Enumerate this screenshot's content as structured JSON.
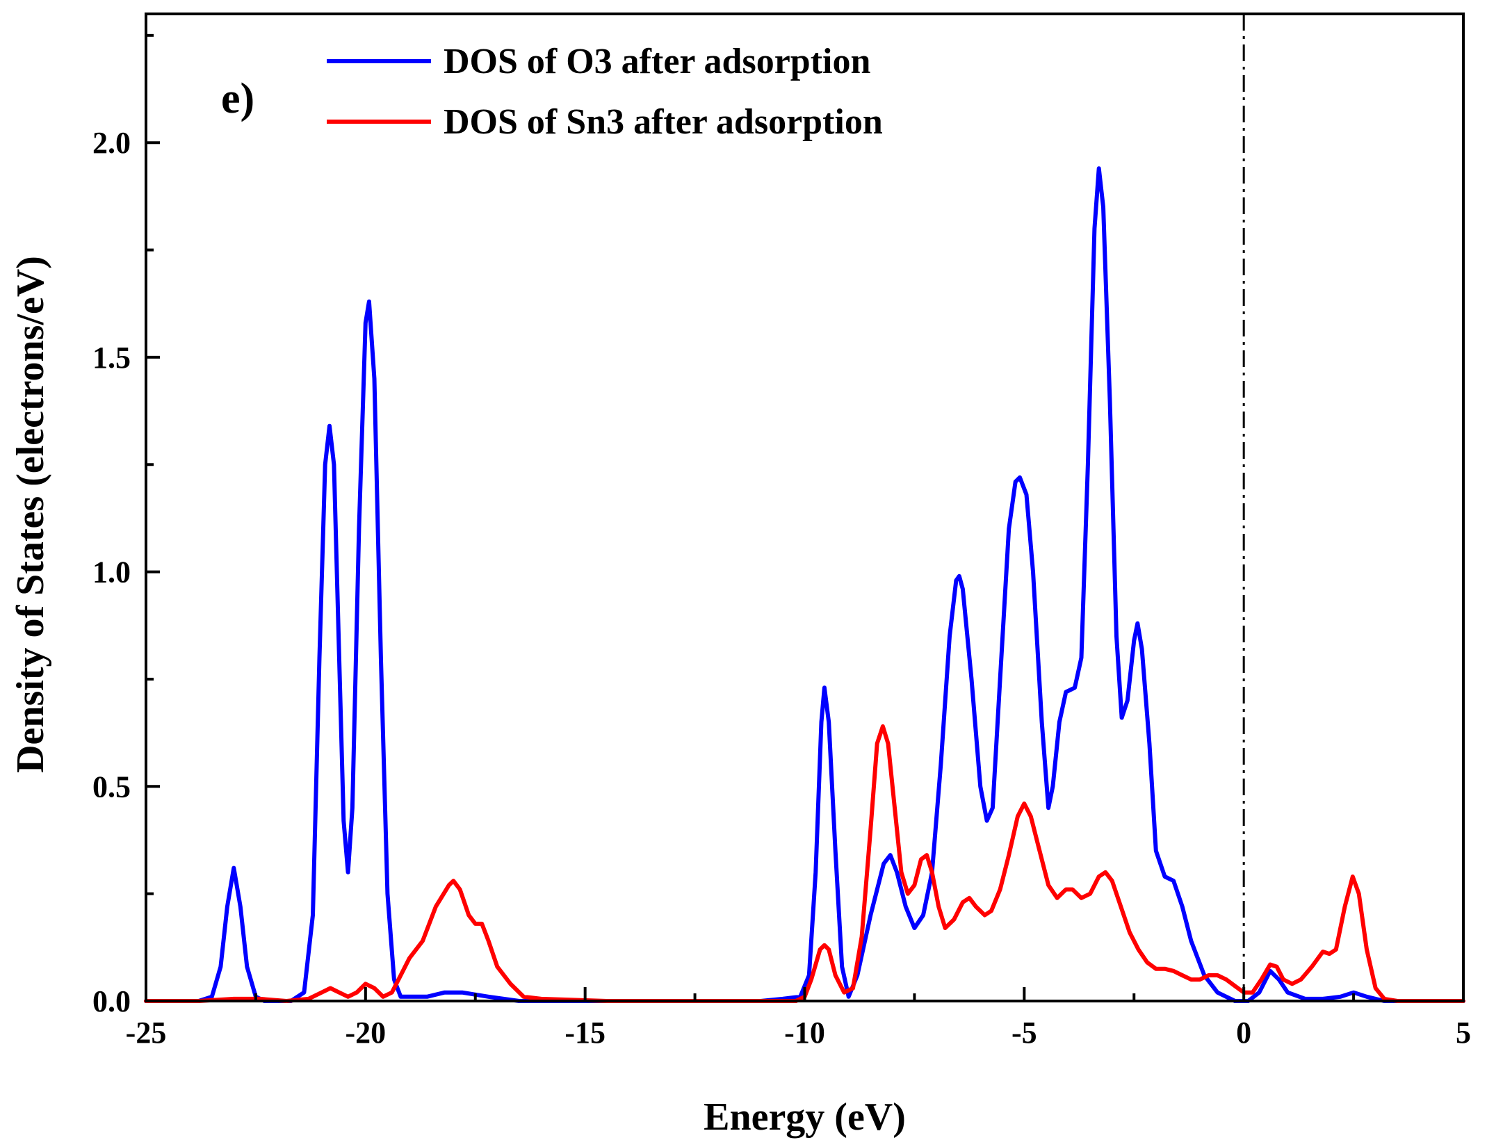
{
  "chart_data": {
    "type": "line",
    "panel_label": "e)",
    "xlabel": "Energy (eV)",
    "ylabel": "Density of States (electrons/eV)",
    "xlim": [
      -25,
      5
    ],
    "ylim": [
      0,
      2.3
    ],
    "xticks": [
      -25,
      -20,
      -15,
      -10,
      -5,
      0,
      5
    ],
    "xtick_labels": [
      "-25",
      "-20",
      "-15",
      "-10",
      "-5",
      "0",
      "5"
    ],
    "yticks": [
      0.0,
      0.5,
      1.0,
      1.5,
      2.0
    ],
    "ytick_labels": [
      "0.0",
      "0.5",
      "1.0",
      "1.5",
      "2.0"
    ],
    "fermi_level": 0,
    "legend_position": "top-left",
    "series": [
      {
        "name": "DOS of O3 after adsorption",
        "color": "#0000ff",
        "points": [
          [
            -25,
            0
          ],
          [
            -23.8,
            0
          ],
          [
            -23.5,
            0.01
          ],
          [
            -23.3,
            0.08
          ],
          [
            -23.15,
            0.22
          ],
          [
            -23.0,
            0.31
          ],
          [
            -22.85,
            0.22
          ],
          [
            -22.7,
            0.08
          ],
          [
            -22.5,
            0.01
          ],
          [
            -22.3,
            0
          ],
          [
            -21.7,
            0
          ],
          [
            -21.4,
            0.02
          ],
          [
            -21.2,
            0.2
          ],
          [
            -21.05,
            0.8
          ],
          [
            -20.92,
            1.25
          ],
          [
            -20.82,
            1.34
          ],
          [
            -20.72,
            1.25
          ],
          [
            -20.6,
            0.8
          ],
          [
            -20.5,
            0.42
          ],
          [
            -20.4,
            0.3
          ],
          [
            -20.3,
            0.45
          ],
          [
            -20.15,
            1.1
          ],
          [
            -20.0,
            1.58
          ],
          [
            -19.92,
            1.63
          ],
          [
            -19.8,
            1.45
          ],
          [
            -19.65,
            0.8
          ],
          [
            -19.5,
            0.25
          ],
          [
            -19.35,
            0.05
          ],
          [
            -19.2,
            0.01
          ],
          [
            -18.6,
            0.01
          ],
          [
            -18.2,
            0.02
          ],
          [
            -17.8,
            0.02
          ],
          [
            -17.2,
            0.01
          ],
          [
            -16.5,
            0.0
          ],
          [
            -14,
            0.0
          ],
          [
            -11,
            0.0
          ],
          [
            -10.5,
            0.005
          ],
          [
            -10.1,
            0.01
          ],
          [
            -9.9,
            0.06
          ],
          [
            -9.75,
            0.3
          ],
          [
            -9.62,
            0.65
          ],
          [
            -9.55,
            0.73
          ],
          [
            -9.45,
            0.65
          ],
          [
            -9.3,
            0.35
          ],
          [
            -9.15,
            0.08
          ],
          [
            -9.0,
            0.01
          ],
          [
            -8.8,
            0.06
          ],
          [
            -8.5,
            0.2
          ],
          [
            -8.2,
            0.32
          ],
          [
            -8.05,
            0.34
          ],
          [
            -7.9,
            0.3
          ],
          [
            -7.7,
            0.22
          ],
          [
            -7.5,
            0.17
          ],
          [
            -7.3,
            0.2
          ],
          [
            -7.1,
            0.3
          ],
          [
            -6.9,
            0.55
          ],
          [
            -6.7,
            0.85
          ],
          [
            -6.55,
            0.98
          ],
          [
            -6.48,
            0.99
          ],
          [
            -6.4,
            0.96
          ],
          [
            -6.2,
            0.75
          ],
          [
            -6.0,
            0.5
          ],
          [
            -5.85,
            0.42
          ],
          [
            -5.72,
            0.45
          ],
          [
            -5.55,
            0.75
          ],
          [
            -5.35,
            1.1
          ],
          [
            -5.2,
            1.21
          ],
          [
            -5.1,
            1.22
          ],
          [
            -4.95,
            1.18
          ],
          [
            -4.8,
            1.0
          ],
          [
            -4.6,
            0.65
          ],
          [
            -4.45,
            0.45
          ],
          [
            -4.35,
            0.5
          ],
          [
            -4.2,
            0.65
          ],
          [
            -4.05,
            0.72
          ],
          [
            -3.85,
            0.73
          ],
          [
            -3.7,
            0.8
          ],
          [
            -3.55,
            1.25
          ],
          [
            -3.4,
            1.8
          ],
          [
            -3.3,
            1.94
          ],
          [
            -3.2,
            1.85
          ],
          [
            -3.05,
            1.4
          ],
          [
            -2.9,
            0.85
          ],
          [
            -2.78,
            0.66
          ],
          [
            -2.65,
            0.7
          ],
          [
            -2.5,
            0.84
          ],
          [
            -2.42,
            0.88
          ],
          [
            -2.32,
            0.82
          ],
          [
            -2.15,
            0.6
          ],
          [
            -2.0,
            0.35
          ],
          [
            -1.8,
            0.29
          ],
          [
            -1.6,
            0.28
          ],
          [
            -1.4,
            0.22
          ],
          [
            -1.2,
            0.14
          ],
          [
            -0.9,
            0.06
          ],
          [
            -0.6,
            0.02
          ],
          [
            -0.2,
            0.0
          ],
          [
            0.1,
            0.0
          ],
          [
            0.35,
            0.02
          ],
          [
            0.6,
            0.07
          ],
          [
            0.8,
            0.05
          ],
          [
            1.0,
            0.02
          ],
          [
            1.4,
            0.005
          ],
          [
            1.8,
            0.005
          ],
          [
            2.2,
            0.01
          ],
          [
            2.5,
            0.02
          ],
          [
            2.8,
            0.01
          ],
          [
            3.2,
            0.0
          ],
          [
            5,
            0.0
          ]
        ]
      },
      {
        "name": "DOS of Sn3 after adsorption",
        "color": "#ff0000",
        "points": [
          [
            -25,
            0
          ],
          [
            -23.8,
            0
          ],
          [
            -23.0,
            0.005
          ],
          [
            -22.4,
            0.005
          ],
          [
            -21.8,
            0.0
          ],
          [
            -21.3,
            0.005
          ],
          [
            -21.0,
            0.02
          ],
          [
            -20.8,
            0.03
          ],
          [
            -20.6,
            0.02
          ],
          [
            -20.4,
            0.01
          ],
          [
            -20.2,
            0.02
          ],
          [
            -20.0,
            0.04
          ],
          [
            -19.8,
            0.03
          ],
          [
            -19.6,
            0.01
          ],
          [
            -19.4,
            0.02
          ],
          [
            -19.2,
            0.06
          ],
          [
            -19.0,
            0.1
          ],
          [
            -18.7,
            0.14
          ],
          [
            -18.4,
            0.22
          ],
          [
            -18.1,
            0.27
          ],
          [
            -18.0,
            0.28
          ],
          [
            -17.85,
            0.26
          ],
          [
            -17.65,
            0.2
          ],
          [
            -17.5,
            0.18
          ],
          [
            -17.35,
            0.18
          ],
          [
            -17.2,
            0.14
          ],
          [
            -17.0,
            0.08
          ],
          [
            -16.7,
            0.04
          ],
          [
            -16.4,
            0.01
          ],
          [
            -16.0,
            0.005
          ],
          [
            -14.5,
            0.0
          ],
          [
            -10.2,
            0.0
          ],
          [
            -10.0,
            0.01
          ],
          [
            -9.85,
            0.05
          ],
          [
            -9.65,
            0.12
          ],
          [
            -9.55,
            0.13
          ],
          [
            -9.45,
            0.12
          ],
          [
            -9.3,
            0.06
          ],
          [
            -9.1,
            0.02
          ],
          [
            -8.9,
            0.03
          ],
          [
            -8.7,
            0.15
          ],
          [
            -8.5,
            0.4
          ],
          [
            -8.35,
            0.6
          ],
          [
            -8.22,
            0.64
          ],
          [
            -8.1,
            0.6
          ],
          [
            -7.95,
            0.45
          ],
          [
            -7.8,
            0.3
          ],
          [
            -7.65,
            0.25
          ],
          [
            -7.5,
            0.27
          ],
          [
            -7.35,
            0.33
          ],
          [
            -7.22,
            0.34
          ],
          [
            -7.1,
            0.3
          ],
          [
            -6.95,
            0.22
          ],
          [
            -6.8,
            0.17
          ],
          [
            -6.6,
            0.19
          ],
          [
            -6.4,
            0.23
          ],
          [
            -6.25,
            0.24
          ],
          [
            -6.1,
            0.22
          ],
          [
            -5.9,
            0.2
          ],
          [
            -5.75,
            0.21
          ],
          [
            -5.55,
            0.26
          ],
          [
            -5.35,
            0.34
          ],
          [
            -5.15,
            0.43
          ],
          [
            -5.0,
            0.46
          ],
          [
            -4.85,
            0.43
          ],
          [
            -4.65,
            0.35
          ],
          [
            -4.45,
            0.27
          ],
          [
            -4.25,
            0.24
          ],
          [
            -4.05,
            0.26
          ],
          [
            -3.9,
            0.26
          ],
          [
            -3.7,
            0.24
          ],
          [
            -3.5,
            0.25
          ],
          [
            -3.3,
            0.29
          ],
          [
            -3.15,
            0.3
          ],
          [
            -3.0,
            0.28
          ],
          [
            -2.8,
            0.22
          ],
          [
            -2.6,
            0.16
          ],
          [
            -2.4,
            0.12
          ],
          [
            -2.2,
            0.09
          ],
          [
            -2.0,
            0.075
          ],
          [
            -1.8,
            0.075
          ],
          [
            -1.6,
            0.07
          ],
          [
            -1.4,
            0.06
          ],
          [
            -1.2,
            0.05
          ],
          [
            -1.0,
            0.05
          ],
          [
            -0.8,
            0.06
          ],
          [
            -0.6,
            0.06
          ],
          [
            -0.4,
            0.05
          ],
          [
            -0.2,
            0.035
          ],
          [
            0.0,
            0.02
          ],
          [
            0.2,
            0.02
          ],
          [
            0.4,
            0.05
          ],
          [
            0.6,
            0.085
          ],
          [
            0.75,
            0.08
          ],
          [
            0.9,
            0.05
          ],
          [
            1.1,
            0.04
          ],
          [
            1.3,
            0.05
          ],
          [
            1.55,
            0.08
          ],
          [
            1.8,
            0.115
          ],
          [
            1.95,
            0.11
          ],
          [
            2.1,
            0.12
          ],
          [
            2.3,
            0.22
          ],
          [
            2.48,
            0.29
          ],
          [
            2.62,
            0.25
          ],
          [
            2.8,
            0.12
          ],
          [
            3.0,
            0.03
          ],
          [
            3.2,
            0.005
          ],
          [
            3.5,
            0.0
          ],
          [
            5,
            0.0
          ]
        ]
      }
    ]
  }
}
